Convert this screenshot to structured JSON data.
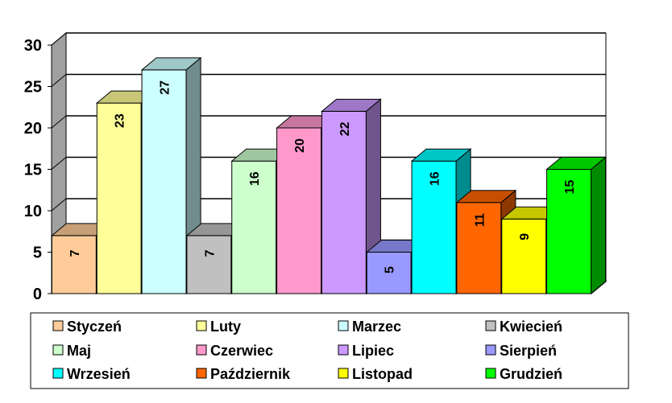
{
  "chart_data": {
    "type": "bar",
    "style": "3d-clustered-column",
    "categories": [
      "Styczeń",
      "Luty",
      "Marzec",
      "Kwiecień",
      "Maj",
      "Czerwiec",
      "Lipiec",
      "Sierpień",
      "Wrzesień",
      "Październik",
      "Listopad",
      "Grudzień"
    ],
    "values": [
      7,
      23,
      27,
      7,
      16,
      20,
      22,
      5,
      16,
      11,
      9,
      15
    ],
    "colors": [
      "#FFCC99",
      "#FFFF99",
      "#CCFFFF",
      "#C0C0C0",
      "#CCFFCC",
      "#FF99CC",
      "#CC99FF",
      "#9999FF",
      "#00FFFF",
      "#FF6600",
      "#FFFF00",
      "#00FF00"
    ],
    "ylim": [
      0,
      30
    ],
    "yticks": [
      "0",
      "5",
      "10",
      "15",
      "20",
      "25",
      "30"
    ],
    "grid": true,
    "legend": "bottom",
    "data_labels": true,
    "title": "",
    "xlabel": "",
    "ylabel": ""
  }
}
